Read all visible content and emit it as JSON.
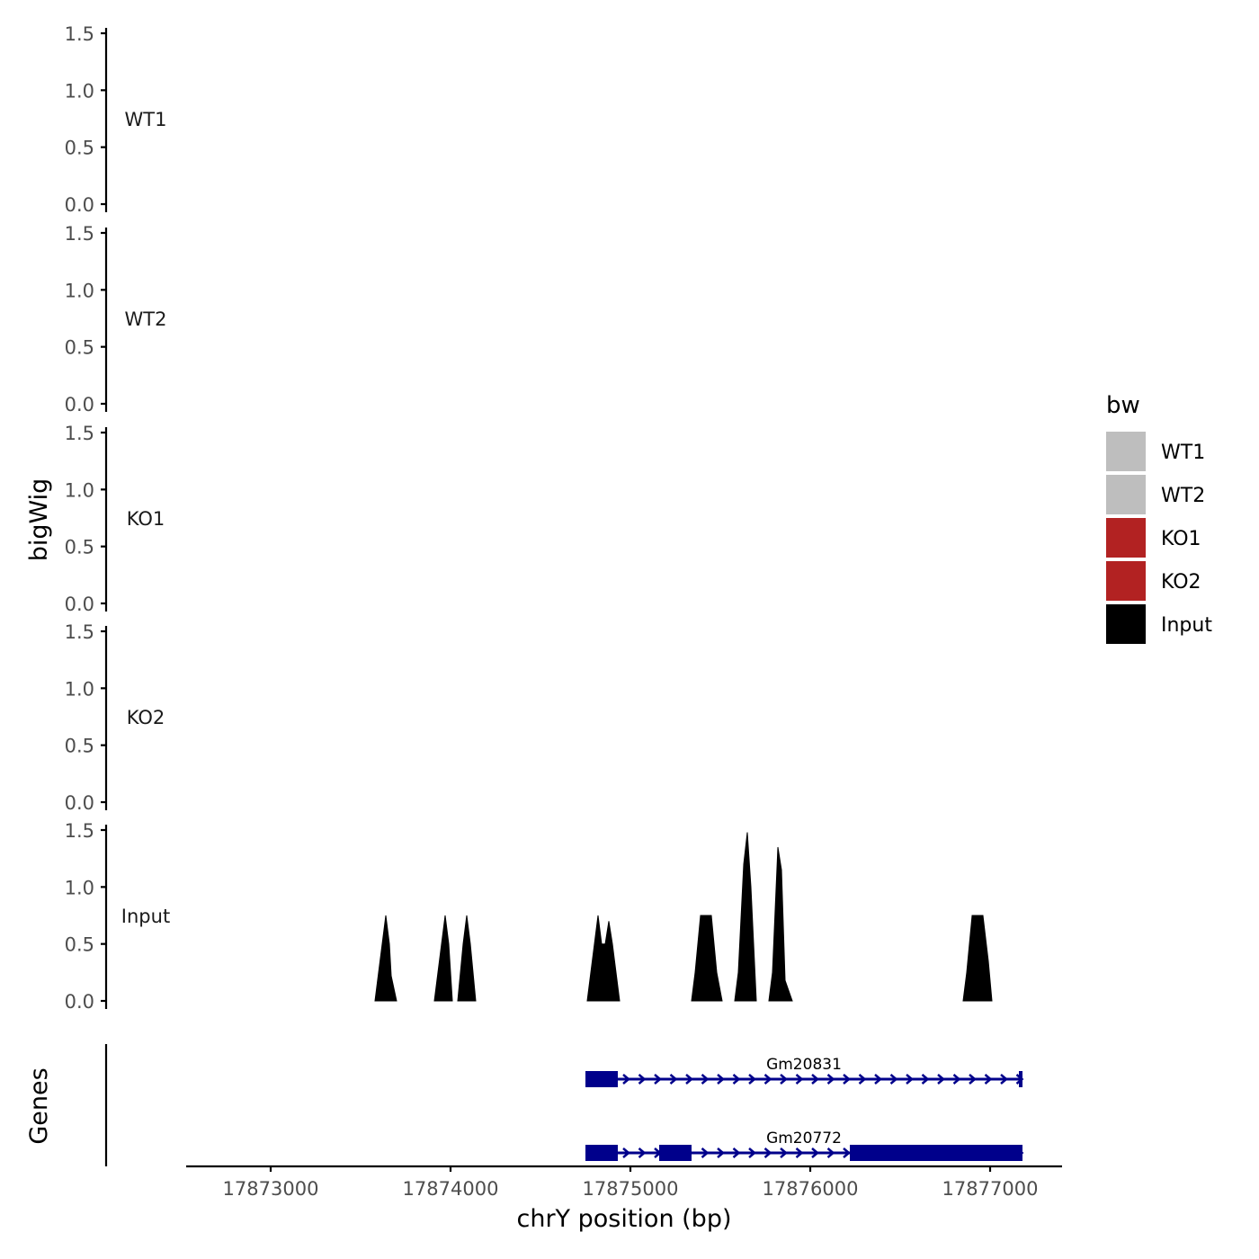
{
  "chart_data": {
    "type": "area",
    "ylabel": "bigWig",
    "genes_label": "Genes",
    "xlabel": "chrY position (bp)",
    "xlim": [
      17872500,
      17877400
    ],
    "x_ticks": [
      17873000,
      17874000,
      17875000,
      17876000,
      17877000
    ],
    "x_tick_labels": [
      "17873000",
      "17874000",
      "17875000",
      "17876000",
      "17877000"
    ],
    "ylim": [
      0,
      1.5
    ],
    "y_ticks": [
      0,
      0.5,
      1,
      1.5
    ],
    "y_tick_labels": [
      "0.0",
      "0.5",
      "1.0",
      "1.5"
    ],
    "legend": {
      "title": "bw",
      "position": "right",
      "entries": [
        {
          "label": "WT1",
          "color": "#bebebe"
        },
        {
          "label": "WT2",
          "color": "#bebebe"
        },
        {
          "label": "KO1",
          "color": "#b22222"
        },
        {
          "label": "KO2",
          "color": "#b22222"
        },
        {
          "label": "Input",
          "color": "#000000"
        }
      ]
    },
    "tracks": [
      {
        "name": "WT1",
        "color": "#bebebe",
        "points": []
      },
      {
        "name": "WT2",
        "color": "#bebebe",
        "points": []
      },
      {
        "name": "KO1",
        "color": "#b22222",
        "points": []
      },
      {
        "name": "KO2",
        "color": "#b22222",
        "points": []
      },
      {
        "name": "Input",
        "color": "#000000",
        "points": [
          [
            17873580,
            0
          ],
          [
            17873620,
            0.5
          ],
          [
            17873640,
            0.75
          ],
          [
            17873660,
            0.5
          ],
          [
            17873670,
            0.22
          ],
          [
            17873700,
            0
          ],
          [
            17873910,
            0
          ],
          [
            17873950,
            0.5
          ],
          [
            17873970,
            0.75
          ],
          [
            17873990,
            0.5
          ],
          [
            17874010,
            0
          ],
          [
            17874040,
            0
          ],
          [
            17874070,
            0.5
          ],
          [
            17874090,
            0.75
          ],
          [
            17874110,
            0.5
          ],
          [
            17874140,
            0
          ],
          [
            17874760,
            0
          ],
          [
            17874800,
            0.5
          ],
          [
            17874820,
            0.75
          ],
          [
            17874840,
            0.5
          ],
          [
            17874860,
            0.5
          ],
          [
            17874880,
            0.7
          ],
          [
            17874900,
            0.5
          ],
          [
            17874940,
            0
          ],
          [
            17875340,
            0
          ],
          [
            17875360,
            0.25
          ],
          [
            17875390,
            0.75
          ],
          [
            17875450,
            0.75
          ],
          [
            17875480,
            0.25
          ],
          [
            17875510,
            0
          ],
          [
            17875580,
            0
          ],
          [
            17875600,
            0.25
          ],
          [
            17875630,
            1.2
          ],
          [
            17875650,
            1.48
          ],
          [
            17875670,
            1.0
          ],
          [
            17875700,
            0
          ],
          [
            17875770,
            0
          ],
          [
            17875790,
            0.25
          ],
          [
            17875820,
            1.35
          ],
          [
            17875840,
            1.15
          ],
          [
            17875860,
            0.18
          ],
          [
            17875900,
            0
          ],
          [
            17876850,
            0
          ],
          [
            17876870,
            0.25
          ],
          [
            17876900,
            0.75
          ],
          [
            17876960,
            0.75
          ],
          [
            17876990,
            0.35
          ],
          [
            17877010,
            0
          ]
        ]
      }
    ],
    "genes": [
      {
        "name": "Gm20831",
        "color": "#00008b",
        "start": 17874750,
        "end": 17877180,
        "exons": [
          [
            17874750,
            17874930
          ],
          [
            17877160,
            17877180
          ]
        ]
      },
      {
        "name": "Gm20772",
        "color": "#00008b",
        "start": 17874750,
        "end": 17877180,
        "exons": [
          [
            17874750,
            17874930
          ],
          [
            17875160,
            17875340
          ],
          [
            17876220,
            17877180
          ]
        ]
      }
    ]
  }
}
